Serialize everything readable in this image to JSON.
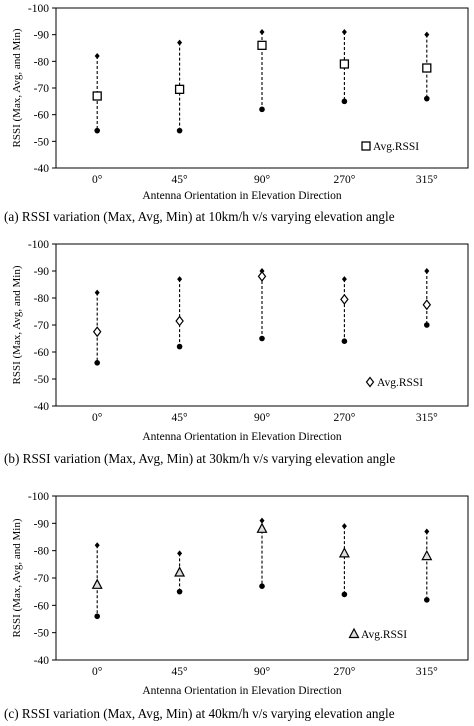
{
  "chart_data": [
    {
      "type": "scatter",
      "ylabel": "RSSI  (Max, Avg, and Min)",
      "xlabel": "Antenna Orientation in Elevation Direction",
      "categories": [
        "0°",
        "45°",
        "90°",
        "270°",
        "315°"
      ],
      "y_ticks": [
        "-100",
        "-90",
        "-80",
        "-70",
        "-60",
        "-50",
        "-40"
      ],
      "ylim": [
        -100,
        -40
      ],
      "y_axis_reversed": true,
      "series": [
        {
          "values": [
            -82,
            -87,
            -91,
            -91,
            -90
          ]
        },
        {
          "name": "Avg.RSSI",
          "marker": "square",
          "values": [
            -67,
            -69.5,
            -86,
            -79,
            -77.5
          ]
        },
        {
          "values": [
            -54,
            -54,
            -62,
            -65,
            -66
          ]
        }
      ],
      "legend_position": "bottom-right",
      "caption": "(a) RSSI variation (Max, Avg, Min) at 10km/h v/s varying elevation angle"
    },
    {
      "type": "scatter",
      "ylabel": "RSSI  (Max, Avg, and Min)",
      "xlabel": "Antenna Orientation in Elevation Direction",
      "categories": [
        "0°",
        "45°",
        "90°",
        "270°",
        "315°"
      ],
      "y_ticks": [
        "-100",
        "-90",
        "-80",
        "-70",
        "-60",
        "-50",
        "-40"
      ],
      "ylim": [
        -100,
        -40
      ],
      "y_axis_reversed": true,
      "series": [
        {
          "values": [
            -82,
            -87,
            -90,
            -87,
            -90
          ]
        },
        {
          "name": "Avg.RSSI",
          "marker": "diamond",
          "values": [
            -67.5,
            -71.5,
            -88,
            -79.5,
            -77.5
          ]
        },
        {
          "values": [
            -56,
            -62,
            -65,
            -64,
            -70
          ]
        }
      ],
      "legend_position": "bottom-right",
      "caption": "(b) RSSI variation (Max, Avg, Min) at 30km/h v/s varying elevation angle"
    },
    {
      "type": "scatter",
      "ylabel": "RSSI  (Max, Avg, and Min)",
      "xlabel": "Antenna Orientation in Elevation Direction",
      "categories": [
        "0°",
        "45°",
        "90°",
        "270°",
        "315°"
      ],
      "y_ticks": [
        "-100",
        "-90",
        "-80",
        "-70",
        "-60",
        "-50",
        "-40"
      ],
      "ylim": [
        -100,
        -40
      ],
      "y_axis_reversed": true,
      "series": [
        {
          "values": [
            -82,
            -79,
            -91,
            -89,
            -87
          ]
        },
        {
          "name": "Avg.RSSI",
          "marker": "triangle",
          "values": [
            -67.5,
            -72,
            -88,
            -79,
            -78
          ]
        },
        {
          "values": [
            -56,
            -65,
            -67,
            -64,
            -62
          ]
        }
      ],
      "legend_position": "bottom-right",
      "caption": "(c) RSSI variation (Max, Avg, Min) at 40km/h v/s varying elevation angle"
    }
  ]
}
